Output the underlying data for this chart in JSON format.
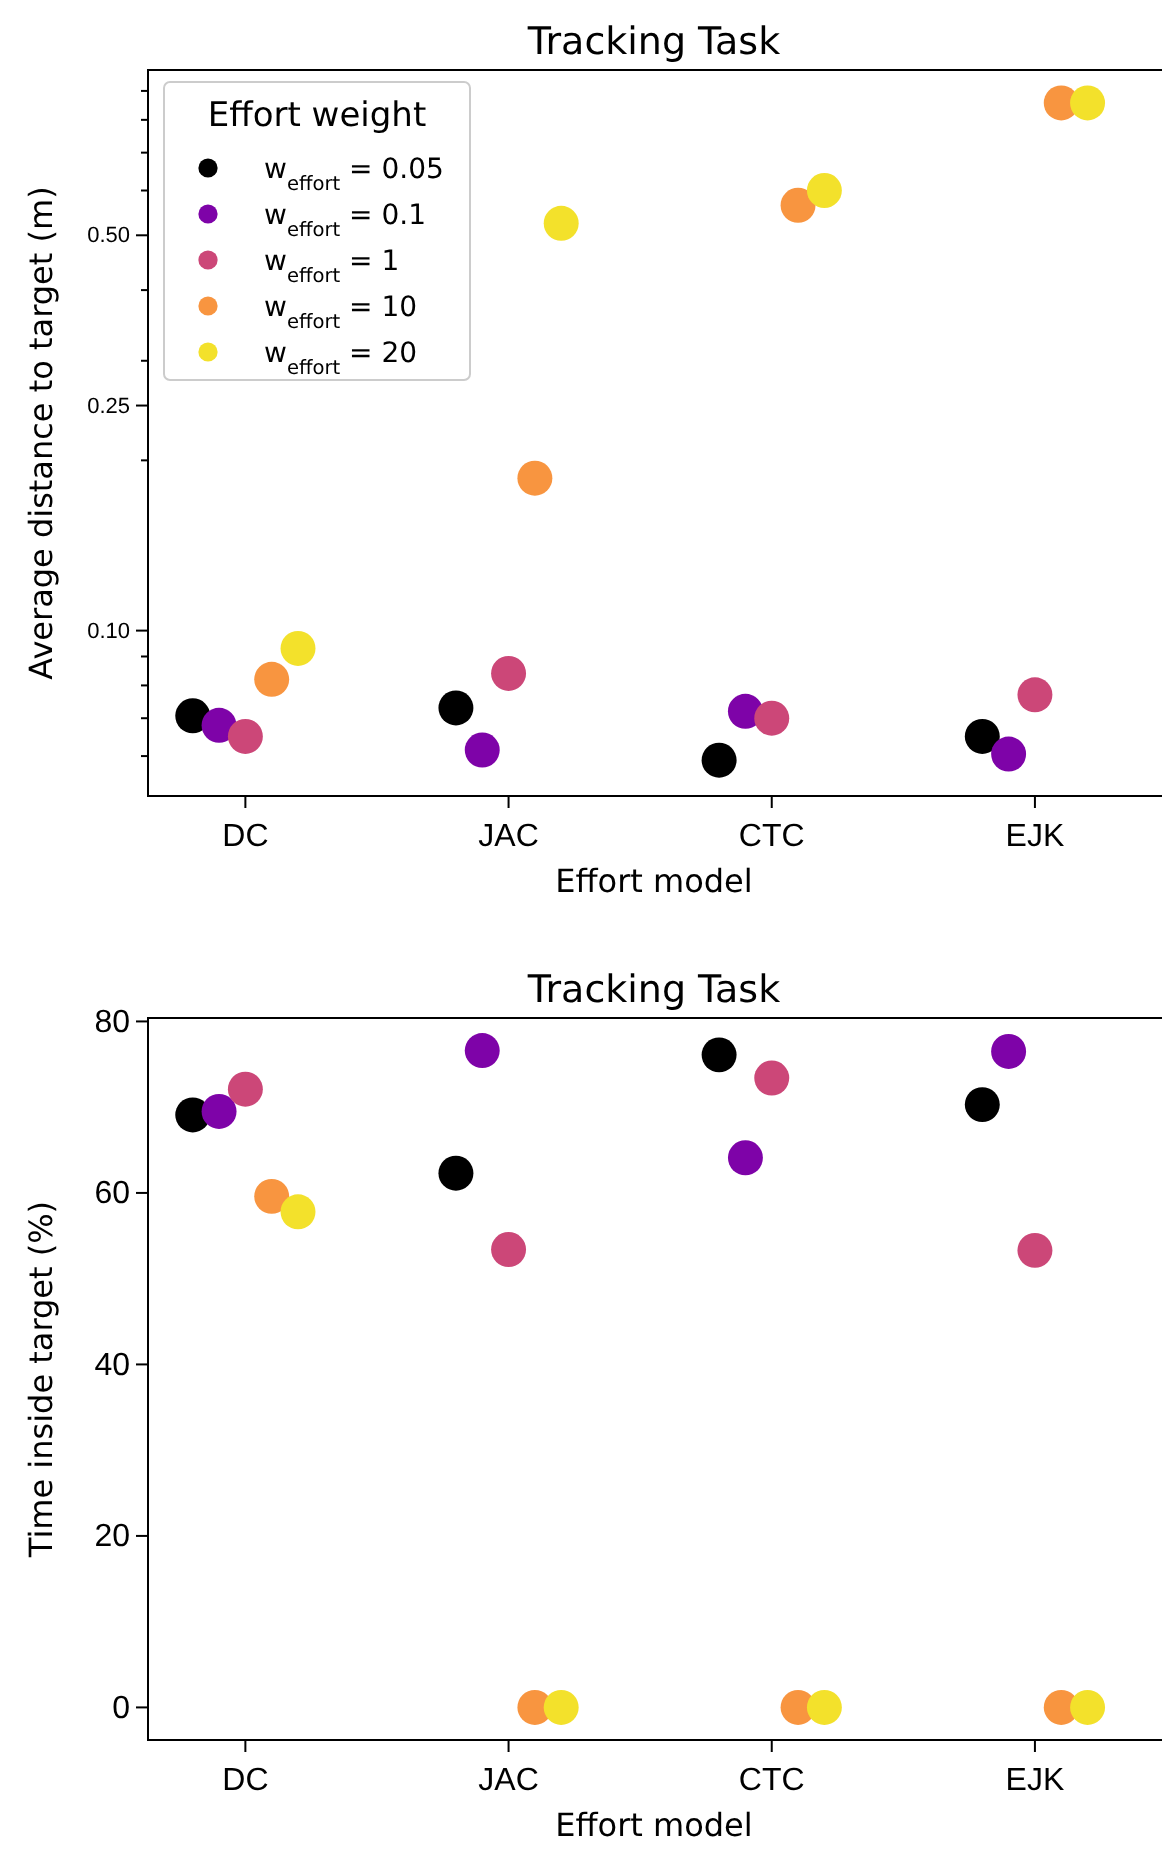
{
  "chart_data": [
    {
      "type": "scatter",
      "title": "Tracking Task",
      "xlabel": "Effort model",
      "ylabel": "Average distance to target (m)",
      "log": "y",
      "marker": "circle",
      "legend": "top left",
      "legend_title": "Effort weight",
      "categories": [
        "DC",
        "JAC",
        "CTC",
        "EJK"
      ],
      "ylim": [
        0.051,
        0.98
      ],
      "yticks": [
        {
          "value": 0.06,
          "label": null
        },
        {
          "value": 0.07,
          "label": null
        },
        {
          "value": 0.08,
          "label": null
        },
        {
          "value": 0.09,
          "label": null
        },
        {
          "value": 0.1,
          "label": "0.10"
        },
        {
          "value": 0.2,
          "label": null
        },
        {
          "value": 0.25,
          "label": "0.25"
        },
        {
          "value": 0.3,
          "label": null
        },
        {
          "value": 0.4,
          "label": null
        },
        {
          "value": 0.5,
          "label": "0.50"
        },
        {
          "value": 0.6,
          "label": null
        },
        {
          "value": 0.7,
          "label": null
        },
        {
          "value": 0.8,
          "label": null
        },
        {
          "value": 0.9,
          "label": null
        }
      ],
      "series": [
        {
          "name": "w$_{effort}$ = 0.05",
          "color": "#000000",
          "values": [
            0.0707,
            0.073,
            0.059,
            0.065
          ]
        },
        {
          "name": "w$_{effort}$ = 0.1",
          "color": "#7e03a8",
          "values": [
            0.068,
            0.0615,
            0.072,
            0.0605
          ]
        },
        {
          "name": "w$_{effort}$ = 1",
          "color": "#cc4778",
          "values": [
            0.065,
            0.084,
            0.07,
            0.077
          ]
        },
        {
          "name": "w$_{effort}$ = 10",
          "color": "#f89540",
          "values": [
            0.082,
            0.186,
            0.565,
            0.857
          ]
        },
        {
          "name": "w$_{effort}$ = 20",
          "color": "#f3e12b",
          "values": [
            0.093,
            0.525,
            0.6,
            0.857
          ]
        }
      ]
    },
    {
      "type": "scatter",
      "title": "Tracking Task",
      "xlabel": "Effort model",
      "ylabel": "Time inside target (%)",
      "marker": "circle",
      "categories": [
        "DC",
        "JAC",
        "CTC",
        "EJK"
      ],
      "ylim": [
        -3.8,
        80.4
      ],
      "yticks": [
        0,
        20,
        40,
        60,
        80
      ],
      "series": [
        {
          "color": "#000000",
          "values": [
            69.1,
            62.3,
            76.1,
            70.3
          ]
        },
        {
          "color": "#7e03a8",
          "values": [
            69.5,
            76.6,
            64.1,
            76.5
          ]
        },
        {
          "color": "#cc4778",
          "values": [
            72.1,
            53.4,
            73.4,
            53.3
          ]
        },
        {
          "color": "#f89540",
          "values": [
            59.6,
            0,
            0,
            0
          ]
        },
        {
          "color": "#f3e12b",
          "values": [
            57.8,
            0,
            0,
            0
          ]
        }
      ]
    }
  ]
}
